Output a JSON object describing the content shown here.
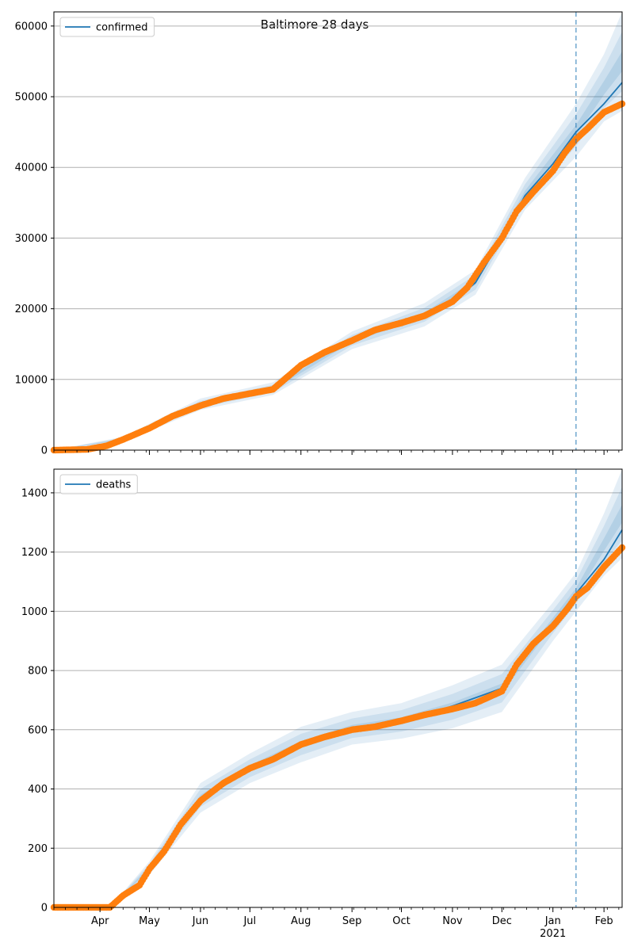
{
  "figure_title": "Baltimore 28 days",
  "colors": {
    "model_line": "#1f77b4",
    "band": "#1f77b4",
    "observed": "#ff7f0e",
    "grid": "#b0b0b0",
    "vline": "#1f77b4"
  },
  "x_axis": {
    "tick_labels": [
      {
        "date": "2020-04-01",
        "label": "Apr"
      },
      {
        "date": "2020-05-01",
        "label": "May"
      },
      {
        "date": "2020-06-01",
        "label": "Jun"
      },
      {
        "date": "2020-07-01",
        "label": "Jul"
      },
      {
        "date": "2020-08-01",
        "label": "Aug"
      },
      {
        "date": "2020-09-01",
        "label": "Sep"
      },
      {
        "date": "2020-10-01",
        "label": "Oct"
      },
      {
        "date": "2020-11-01",
        "label": "Nov"
      },
      {
        "date": "2020-12-01",
        "label": "Dec"
      },
      {
        "date": "2021-01-01",
        "label": "Jan",
        "sublabel": "2021"
      },
      {
        "date": "2021-02-01",
        "label": "Feb"
      }
    ]
  },
  "chart_data": [
    {
      "type": "line",
      "legend": [
        "confirmed"
      ],
      "legend_position": "top-left",
      "xlim": [
        "2020-03-04",
        "2021-02-12"
      ],
      "ylim": [
        0,
        62000
      ],
      "yticks": [
        0,
        10000,
        20000,
        30000,
        40000,
        50000,
        60000
      ],
      "grid": "horizontal",
      "forecast_start": "2021-01-15",
      "series": [
        {
          "name": "confirmed",
          "kind": "model-line",
          "x": [
            "2020-03-04",
            "2020-03-24",
            "2020-04-10",
            "2020-05-01",
            "2020-06-01",
            "2020-07-01",
            "2020-07-15",
            "2020-08-01",
            "2020-09-01",
            "2020-10-01",
            "2020-11-01",
            "2020-11-15",
            "2020-12-01",
            "2020-12-15",
            "2021-01-01",
            "2021-01-15",
            "2021-02-01",
            "2021-02-12"
          ],
          "values": [
            0,
            100,
            1100,
            3100,
            6300,
            8000,
            8600,
            12000,
            15500,
            18000,
            21000,
            23700,
            30000,
            36000,
            40500,
            45000,
            49000,
            52000
          ]
        },
        {
          "kind": "observed-points",
          "x": [
            "2020-03-04",
            "2020-03-24",
            "2020-04-05",
            "2020-04-15",
            "2020-05-01",
            "2020-05-15",
            "2020-06-01",
            "2020-06-15",
            "2020-07-01",
            "2020-07-15",
            "2020-08-01",
            "2020-08-15",
            "2020-09-01",
            "2020-09-15",
            "2020-10-01",
            "2020-10-15",
            "2020-11-01",
            "2020-11-10",
            "2020-11-20",
            "2020-12-01",
            "2020-12-10",
            "2020-12-20",
            "2021-01-01",
            "2021-01-08",
            "2021-01-15",
            "2021-01-22",
            "2021-02-01",
            "2021-02-12"
          ],
          "values": [
            0,
            100,
            600,
            1500,
            3100,
            4800,
            6300,
            7300,
            8000,
            8600,
            12000,
            13800,
            15500,
            17000,
            18000,
            19000,
            21000,
            23000,
            26500,
            30000,
            33800,
            36500,
            39500,
            42000,
            44000,
            45500,
            47800,
            49000
          ]
        },
        {
          "kind": "uncertainty-band",
          "x": [
            "2020-03-04",
            "2020-04-15",
            "2020-06-01",
            "2020-07-15",
            "2020-09-01",
            "2020-10-15",
            "2020-11-15",
            "2020-12-15",
            "2021-01-15",
            "2021-02-01",
            "2021-02-12"
          ],
          "lower": [
            0,
            1200,
            5700,
            7800,
            14300,
            17500,
            22000,
            34000,
            41500,
            46500,
            48000
          ],
          "upper": [
            0,
            1900,
            7300,
            9600,
            16800,
            20800,
            25500,
            38500,
            49000,
            56000,
            62000
          ]
        }
      ]
    },
    {
      "type": "line",
      "legend": [
        "deaths"
      ],
      "legend_position": "top-left",
      "xlim": [
        "2020-03-04",
        "2021-02-12"
      ],
      "ylim": [
        0,
        1480
      ],
      "yticks": [
        0,
        200,
        400,
        600,
        800,
        1000,
        1200,
        1400
      ],
      "grid": "horizontal",
      "forecast_start": "2021-01-15",
      "series": [
        {
          "name": "deaths",
          "kind": "model-line",
          "x": [
            "2020-03-04",
            "2020-04-07",
            "2020-04-20",
            "2020-05-01",
            "2020-05-15",
            "2020-06-01",
            "2020-06-15",
            "2020-07-01",
            "2020-08-01",
            "2020-09-01",
            "2020-10-01",
            "2020-11-01",
            "2020-12-01",
            "2020-12-15",
            "2021-01-01",
            "2021-01-15",
            "2021-02-01",
            "2021-02-12"
          ],
          "values": [
            0,
            0,
            50,
            130,
            230,
            360,
            420,
            465,
            545,
            598,
            625,
            680,
            740,
            850,
            960,
            1060,
            1175,
            1275
          ]
        },
        {
          "kind": "observed-points",
          "x": [
            "2020-03-04",
            "2020-04-07",
            "2020-04-15",
            "2020-04-25",
            "2020-05-01",
            "2020-05-10",
            "2020-05-20",
            "2020-06-01",
            "2020-06-15",
            "2020-07-01",
            "2020-07-15",
            "2020-08-01",
            "2020-08-15",
            "2020-09-01",
            "2020-09-15",
            "2020-10-01",
            "2020-10-15",
            "2020-11-01",
            "2020-11-15",
            "2020-12-01",
            "2020-12-10",
            "2020-12-20",
            "2021-01-01",
            "2021-01-10",
            "2021-01-15",
            "2021-01-22",
            "2021-02-01",
            "2021-02-12"
          ],
          "values": [
            0,
            0,
            40,
            75,
            130,
            190,
            280,
            360,
            420,
            470,
            500,
            550,
            575,
            600,
            610,
            630,
            650,
            670,
            690,
            730,
            820,
            890,
            950,
            1010,
            1050,
            1080,
            1150,
            1215
          ]
        },
        {
          "kind": "uncertainty-band",
          "x": [
            "2020-03-04",
            "2020-04-07",
            "2020-05-01",
            "2020-06-01",
            "2020-07-01",
            "2020-08-01",
            "2020-09-01",
            "2020-10-01",
            "2020-11-01",
            "2020-12-01",
            "2021-01-01",
            "2021-01-15",
            "2021-02-01",
            "2021-02-12"
          ],
          "lower": [
            0,
            0,
            110,
            320,
            420,
            490,
            550,
            570,
            605,
            660,
            900,
            1000,
            1120,
            1180
          ],
          "upper": [
            0,
            0,
            155,
            420,
            520,
            610,
            660,
            690,
            750,
            820,
            1030,
            1130,
            1330,
            1480
          ]
        }
      ]
    }
  ]
}
